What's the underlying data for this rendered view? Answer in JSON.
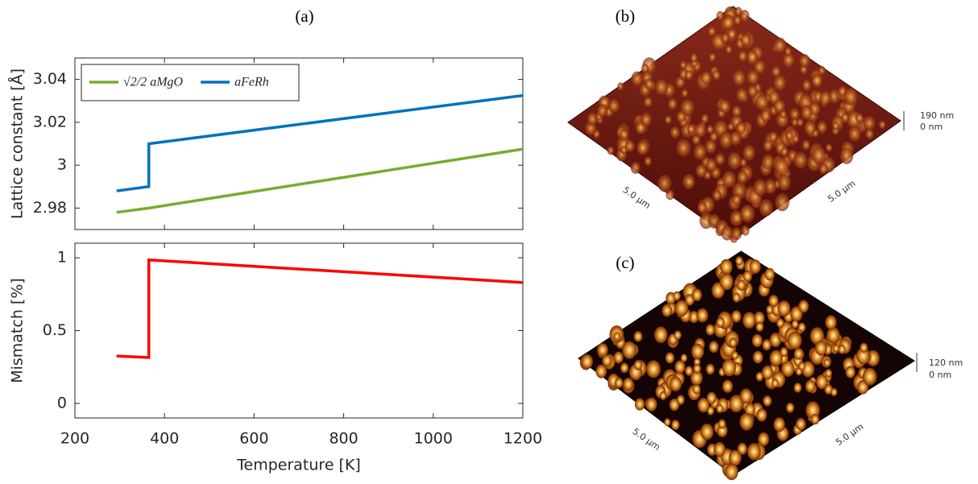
{
  "chart_data": [
    {
      "type": "line",
      "ylabel": "Lattice constant [Å]",
      "x": [
        293,
        365,
        365,
        1200
      ],
      "series": [
        {
          "name": "√2/2 aMgO",
          "color": "#77ac30",
          "values": [
            2.978,
            2.98,
            2.98,
            3.0075
          ]
        },
        {
          "name": "aFeRh",
          "color": "#0072bd",
          "values": [
            2.988,
            2.99,
            3.01,
            3.0325
          ]
        }
      ],
      "xlim": [
        200,
        1200
      ],
      "xticks": [
        200,
        400,
        600,
        800,
        1000,
        1200
      ],
      "xtick_labels": false,
      "ylim": [
        2.97,
        3.05
      ],
      "yticks": [
        2.98,
        3,
        3.02,
        3.04
      ],
      "legend": "top-left",
      "grid": false
    },
    {
      "type": "line",
      "ylabel": "Mismatch [%]",
      "xlabel": "Temperature [K]",
      "x": [
        293,
        365,
        365,
        1200
      ],
      "series": [
        {
          "color": "#ff0000",
          "values": [
            0.325,
            0.315,
            0.985,
            0.83
          ]
        }
      ],
      "xlim": [
        200,
        1200
      ],
      "xticks": [
        200,
        400,
        600,
        800,
        1000,
        1200
      ],
      "xtick_labels": true,
      "ylim": [
        -0.1,
        1.1
      ],
      "yticks": [
        0,
        0.5,
        1
      ],
      "grid": false
    }
  ],
  "figure": {
    "labels": [
      "(a)",
      "(b)",
      "(c)"
    ],
    "afm": [
      {
        "zmax": "190 nm",
        "zmin": "0 nm",
        "scale_left": "5.0 µm",
        "scale_right": "5.0 µm"
      },
      {
        "zmax": "120 nm",
        "zmin": "0 nm",
        "scale_left": "5.0 µm",
        "scale_right": "5.0 µm"
      }
    ]
  }
}
